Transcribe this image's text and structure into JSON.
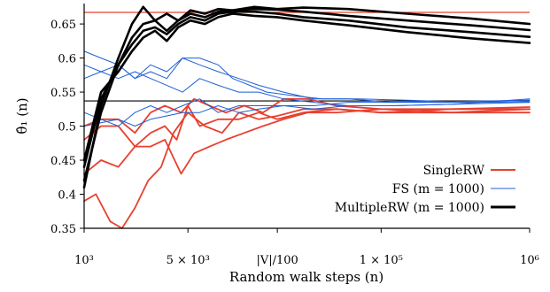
{
  "chart_data": {
    "type": "line",
    "xlabel": "Random walk steps (n)",
    "ylabel": "θ̂₁ (n)",
    "x_scale": "log",
    "xlim": [
      1000,
      1000000
    ],
    "ylim": [
      0.35,
      0.68
    ],
    "x_ticks": [
      {
        "value": 1000,
        "label": "10³"
      },
      {
        "value": 5000,
        "label": "5 × 10³"
      },
      {
        "value": 20000,
        "label": "|V|/100"
      },
      {
        "value": 100000,
        "label": "1 × 10⁵"
      },
      {
        "value": 1000000,
        "label": "10⁶"
      }
    ],
    "y_ticks": [
      {
        "value": 0.35,
        "label": "0.35"
      },
      {
        "value": 0.4,
        "label": "0.4"
      },
      {
        "value": 0.45,
        "label": "0.45"
      },
      {
        "value": 0.5,
        "label": "0.5"
      },
      {
        "value": 0.55,
        "label": "0.55"
      },
      {
        "value": 0.6,
        "label": "0.6"
      },
      {
        "value": 0.65,
        "label": "0.65"
      }
    ],
    "reference_lines": [
      {
        "y": 0.667,
        "color": "#e8402f"
      },
      {
        "y": 0.537,
        "color": "#000000"
      }
    ],
    "legend": {
      "placement": "bottom-right",
      "entries": [
        {
          "label": "SingleRW",
          "color": "#e8402f",
          "width": 2
        },
        {
          "label": "FS (m = 1000)",
          "color": "#1f5fd6",
          "width": 1
        },
        {
          "label": "MultipleRW (m = 1000)",
          "color": "#000000",
          "width": 3
        }
      ]
    },
    "series": [
      {
        "group": "SingleRW",
        "color": "#e8402f",
        "width": 1.8,
        "x": [
          1000,
          1200,
          1500,
          1800,
          2200,
          2700,
          3300,
          4000,
          5000,
          6500,
          8500,
          11000,
          15000,
          20000,
          30000,
          50000,
          100000,
          300000,
          1000000
        ],
        "y": [
          0.39,
          0.4,
          0.36,
          0.35,
          0.38,
          0.42,
          0.44,
          0.49,
          0.52,
          0.5,
          0.49,
          0.52,
          0.51,
          0.515,
          0.525,
          0.525,
          0.52,
          0.525,
          0.525
        ]
      },
      {
        "group": "SingleRW",
        "color": "#e8402f",
        "width": 1.8,
        "x": [
          1000,
          1300,
          1700,
          2200,
          2800,
          3500,
          4500,
          5500,
          7000,
          9000,
          12000,
          16000,
          22000,
          32000,
          50000,
          100000,
          300000,
          1000000
        ],
        "y": [
          0.43,
          0.45,
          0.44,
          0.47,
          0.47,
          0.48,
          0.43,
          0.46,
          0.47,
          0.48,
          0.49,
          0.5,
          0.51,
          0.52,
          0.52,
          0.525,
          0.525,
          0.528
        ]
      },
      {
        "group": "SingleRW",
        "color": "#e8402f",
        "width": 1.8,
        "x": [
          1000,
          1300,
          1700,
          2200,
          2800,
          3500,
          4200,
          5000,
          6000,
          8000,
          11000,
          15000,
          20000,
          30000,
          50000,
          100000,
          300000,
          1000000
        ],
        "y": [
          0.48,
          0.5,
          0.5,
          0.47,
          0.49,
          0.5,
          0.48,
          0.53,
          0.5,
          0.51,
          0.51,
          0.52,
          0.51,
          0.52,
          0.525,
          0.52,
          0.52,
          0.525
        ]
      },
      {
        "group": "SingleRW",
        "color": "#e8402f",
        "width": 1.8,
        "x": [
          1000,
          1300,
          1700,
          2200,
          2800,
          3500,
          4500,
          5500,
          7000,
          9000,
          12000,
          16000,
          22000,
          32000,
          50000,
          100000,
          300000,
          1000000
        ],
        "y": [
          0.5,
          0.51,
          0.51,
          0.49,
          0.52,
          0.53,
          0.52,
          0.54,
          0.53,
          0.52,
          0.53,
          0.52,
          0.54,
          0.54,
          0.53,
          0.525,
          0.52,
          0.52
        ]
      },
      {
        "group": "FS",
        "color": "#1f5fd6",
        "width": 1,
        "x": [
          1000,
          1300,
          1700,
          2200,
          2800,
          3600,
          4600,
          6000,
          8000,
          10000,
          13000,
          17000,
          25000,
          40000,
          70000,
          150000,
          400000,
          1000000
        ],
        "y": [
          0.61,
          0.6,
          0.59,
          0.57,
          0.58,
          0.57,
          0.6,
          0.6,
          0.59,
          0.57,
          0.56,
          0.55,
          0.545,
          0.54,
          0.54,
          0.538,
          0.535,
          0.538
        ]
      },
      {
        "group": "FS",
        "color": "#1f5fd6",
        "width": 1,
        "x": [
          1000,
          1300,
          1700,
          2200,
          2800,
          3600,
          4600,
          6000,
          8000,
          11000,
          15000,
          22000,
          35000,
          60000,
          120000,
          300000,
          1000000
        ],
        "y": [
          0.57,
          0.58,
          0.59,
          0.57,
          0.59,
          0.58,
          0.6,
          0.59,
          0.58,
          0.57,
          0.56,
          0.55,
          0.54,
          0.54,
          0.535,
          0.535,
          0.535
        ]
      },
      {
        "group": "FS",
        "color": "#1f5fd6",
        "width": 1,
        "x": [
          1000,
          1300,
          1700,
          2200,
          2800,
          3600,
          4600,
          6000,
          8000,
          11000,
          15000,
          22000,
          35000,
          60000,
          120000,
          300000,
          1000000
        ],
        "y": [
          0.59,
          0.58,
          0.57,
          0.58,
          0.57,
          0.56,
          0.55,
          0.57,
          0.56,
          0.55,
          0.55,
          0.54,
          0.535,
          0.53,
          0.53,
          0.532,
          0.54
        ]
      },
      {
        "group": "FS",
        "color": "#1f5fd6",
        "width": 1,
        "x": [
          1000,
          1300,
          1700,
          2200,
          2800,
          3600,
          4600,
          6000,
          8000,
          11000,
          15000,
          22000,
          35000,
          60000,
          120000,
          300000,
          1000000
        ],
        "y": [
          0.52,
          0.51,
          0.5,
          0.52,
          0.53,
          0.52,
          0.53,
          0.54,
          0.52,
          0.53,
          0.53,
          0.53,
          0.525,
          0.53,
          0.53,
          0.532,
          0.535
        ]
      },
      {
        "group": "FS",
        "color": "#1f5fd6",
        "width": 1,
        "x": [
          1000,
          1300,
          1700,
          2200,
          2800,
          3600,
          4600,
          6000,
          8000,
          11000,
          15000,
          22000,
          35000,
          60000,
          120000,
          300000,
          1000000
        ],
        "y": [
          0.5,
          0.505,
          0.51,
          0.5,
          0.51,
          0.515,
          0.52,
          0.52,
          0.53,
          0.52,
          0.525,
          0.53,
          0.53,
          0.535,
          0.535,
          0.536,
          0.538
        ]
      },
      {
        "group": "MultipleRW",
        "color": "#000000",
        "width": 2.6,
        "x": [
          1000,
          1300,
          1700,
          2100,
          2500,
          3000,
          3600,
          4300,
          5200,
          6500,
          8000,
          10000,
          14000,
          20000,
          30000,
          60000,
          150000,
          400000,
          1000000
        ],
        "y": [
          0.41,
          0.53,
          0.6,
          0.65,
          0.675,
          0.655,
          0.665,
          0.655,
          0.67,
          0.665,
          0.672,
          0.67,
          0.675,
          0.672,
          0.674,
          0.672,
          0.665,
          0.658,
          0.65
        ]
      },
      {
        "group": "MultipleRW",
        "color": "#000000",
        "width": 2.6,
        "x": [
          1000,
          1300,
          1700,
          2100,
          2500,
          3000,
          3600,
          4300,
          5200,
          6500,
          8000,
          10000,
          14000,
          20000,
          30000,
          60000,
          150000,
          400000,
          1000000
        ],
        "y": [
          0.42,
          0.52,
          0.59,
          0.63,
          0.65,
          0.655,
          0.64,
          0.655,
          0.665,
          0.66,
          0.668,
          0.67,
          0.672,
          0.671,
          0.668,
          0.662,
          0.655,
          0.648,
          0.641
        ]
      },
      {
        "group": "MultipleRW",
        "color": "#000000",
        "width": 2.6,
        "x": [
          1000,
          1300,
          1700,
          2100,
          2500,
          3000,
          3600,
          4300,
          5200,
          6500,
          8000,
          10000,
          14000,
          20000,
          30000,
          60000,
          150000,
          400000,
          1000000
        ],
        "y": [
          0.44,
          0.54,
          0.59,
          0.62,
          0.64,
          0.645,
          0.635,
          0.65,
          0.66,
          0.655,
          0.665,
          0.668,
          0.668,
          0.665,
          0.66,
          0.655,
          0.645,
          0.638,
          0.631
        ]
      },
      {
        "group": "MultipleRW",
        "color": "#000000",
        "width": 2.6,
        "x": [
          1000,
          1300,
          1700,
          2100,
          2500,
          3000,
          3600,
          4300,
          5200,
          6500,
          8000,
          10000,
          14000,
          20000,
          30000,
          60000,
          150000,
          400000,
          1000000
        ],
        "y": [
          0.45,
          0.55,
          0.58,
          0.61,
          0.63,
          0.64,
          0.625,
          0.645,
          0.655,
          0.65,
          0.66,
          0.665,
          0.662,
          0.66,
          0.655,
          0.648,
          0.638,
          0.629,
          0.622
        ]
      }
    ]
  }
}
